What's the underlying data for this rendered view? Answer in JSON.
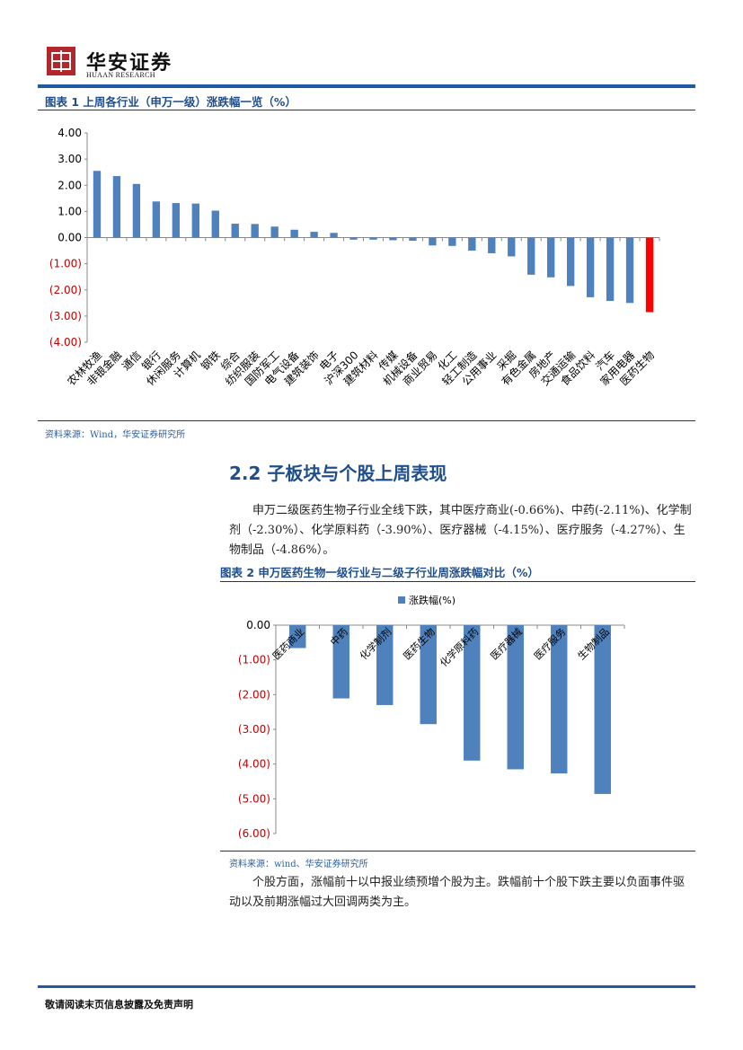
{
  "header": {
    "logo_cn": "华安证券",
    "logo_en": "HUAAN RESEARCH"
  },
  "figure1": {
    "title": "图表 1 上周各行业（申万一级）涨跌幅一览（%）",
    "source": "资料来源：Wind，华安证券研究所"
  },
  "section": {
    "title": "2.2 子板块与个股上周表现",
    "paragraph1": "申万二级医药生物子行业全线下跌，其中医疗商业(-0.66%)、中药(-2.11%)、化学制剂（-2.30%）、化学原料药（-3.90%）、医疗器械（-4.15%）、医疗服务（-4.27%）、生物制品（-4.86%）。",
    "paragraph2": "个股方面，涨幅前十以中报业绩预增个股为主。跌幅前十个股下跌主要以负面事件驱动以及前期涨幅过大回调两类为主。"
  },
  "figure2": {
    "title": "图表 2 申万医药生物一级行业与二级子行业周涨跌幅对比（%）",
    "source": "资料来源：wind、华安证券研究所"
  },
  "footer": {
    "note": "敬请阅读末页信息披露及免责声明"
  },
  "colors": {
    "bar": "#4f81bd",
    "highlight": "#ff0000",
    "brand_blue": "#1f5aa6",
    "logo_red": "#b3262c"
  },
  "chart_data": [
    {
      "type": "bar",
      "categories": [
        "农林牧渔",
        "非银金融",
        "通信",
        "银行",
        "休闲服务",
        "计算机",
        "钢铁",
        "综合",
        "纺织服装",
        "国防军工",
        "电气设备",
        "建筑装饰",
        "电子",
        "沪深300",
        "建筑材料",
        "传媒",
        "机械设备",
        "商业贸易",
        "化工",
        "轻工制造",
        "公用事业",
        "采掘",
        "有色金属",
        "房地产",
        "交通运输",
        "食品饮料",
        "汽车",
        "家用电器",
        "医药生物"
      ],
      "values": [
        2.55,
        2.35,
        2.05,
        1.38,
        1.32,
        1.3,
        1.03,
        0.53,
        0.52,
        0.42,
        0.3,
        0.22,
        0.18,
        -0.08,
        -0.08,
        -0.1,
        -0.12,
        -0.3,
        -0.32,
        -0.5,
        -0.6,
        -0.72,
        -1.42,
        -1.52,
        -1.85,
        -2.28,
        -2.42,
        -2.5,
        -2.85
      ],
      "highlight_category": "医药生物",
      "ylim": [
        -4,
        4
      ],
      "yticks": [
        "4.00",
        "3.00",
        "2.00",
        "1.00",
        "0.00",
        "(1.00)",
        "(2.00)",
        "(3.00)",
        "(4.00)"
      ],
      "grid": false
    },
    {
      "type": "bar",
      "categories": [
        "医药商业",
        "中药",
        "化学制剂",
        "医药生物",
        "化学原料药",
        "医疗器械",
        "医疗服务",
        "生物制品"
      ],
      "series": [
        {
          "name": "涨跌幅(%)",
          "values": [
            -0.66,
            -2.11,
            -2.3,
            -2.85,
            -3.9,
            -4.15,
            -4.27,
            -4.86
          ]
        }
      ],
      "ylim": [
        -6,
        0
      ],
      "yticks": [
        "0.00",
        "(1.00)",
        "(2.00)",
        "(3.00)",
        "(4.00)",
        "(5.00)",
        "(6.00)"
      ],
      "legend": "top-center",
      "grid": false
    }
  ]
}
